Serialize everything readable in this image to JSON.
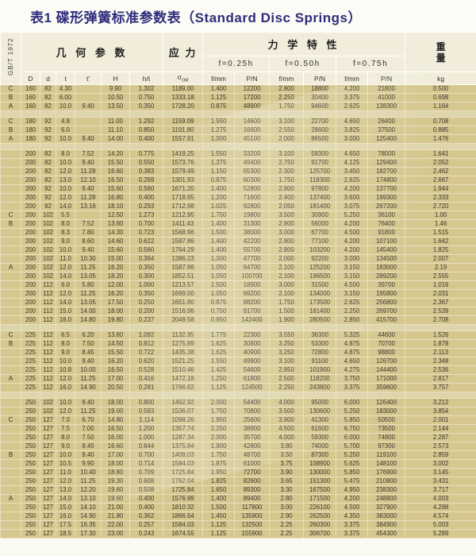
{
  "title": "表1 碟形弹簧标准参数表（Standard Disc Springs）",
  "standard_label": "GB/T 1972",
  "header": {
    "geometry_group": "几 何 参 数",
    "stress_group": "应 力",
    "mechanics_group": "力 学 特 性",
    "weight_top": "重",
    "weight_bottom": "量",
    "stress_symbol": "σ",
    "stress_symbol_sub": "OM",
    "f_levels": [
      "f=0.25h",
      "f=0.50h",
      "f=0.75h"
    ],
    "geo_cols": [
      "D",
      "d",
      "t",
      "t′",
      "H",
      "h/t"
    ],
    "mech_col_f": "f/mm",
    "mech_col_p": "P/N",
    "weight_unit": "kg"
  },
  "colors": {
    "title_text": "#2d2d7b",
    "header_bg": "#f1edda",
    "row_bg": "#d5c78e",
    "separator_bg": "#ded5ac",
    "gridline": "#e9e1c0"
  },
  "rows": [
    {
      "label": "C",
      "c": [
        "160",
        "82",
        "4.30",
        "",
        "9.90",
        "1.302",
        "1189.00",
        "1.400",
        "12200",
        "2.800",
        "18800",
        "4.200",
        "21800",
        "0.500"
      ]
    },
    {
      "label": "B",
      "c": [
        "160",
        "82",
        "6.00",
        "",
        "10.50",
        "0.750",
        "1333.18",
        "1.125",
        "17200",
        "2.250",
        "30400",
        "3.375",
        "41000",
        "0.698"
      ]
    },
    {
      "label": "A",
      "c": [
        "160",
        "82",
        "10.0",
        "9.40",
        "13.50",
        "0.350",
        "1728.20",
        "0.875",
        "48900",
        "1.750",
        "94600",
        "2.625",
        "138300",
        "1.164"
      ]
    },
    {
      "sep": true
    },
    {
      "label": "C",
      "c": [
        "180",
        "92",
        "4.8",
        "",
        "11.00",
        "1.292",
        "1159.09",
        "1.550",
        "14600",
        "3.100",
        "22700",
        "4.650",
        "26400",
        "0.708"
      ]
    },
    {
      "label": "B",
      "c": [
        "180",
        "92",
        "6.0",
        "",
        "11.10",
        "0.850",
        "1191.80",
        "1.275",
        "16600",
        "2.550",
        "28600",
        "3.825",
        "37500",
        "0.885"
      ]
    },
    {
      "label": "A",
      "c": [
        "180",
        "92",
        "10.0",
        "9.40",
        "14.00",
        "0.400",
        "1557.91",
        "1.000",
        "45100",
        "2.000",
        "86500",
        "3.000",
        "125400",
        "1.476"
      ]
    },
    {
      "sep": true
    },
    {
      "label": "",
      "c": [
        "200",
        "82",
        "8.0",
        "7.52",
        "14.20",
        "0.775",
        "1419.25",
        "1.550",
        "33200",
        "3.100",
        "58300",
        "4.650",
        "78000",
        "1.641"
      ]
    },
    {
      "label": "",
      "c": [
        "200",
        "82",
        "10.0",
        "9.40",
        "15.50",
        "0.550",
        "1573.76",
        "1.375",
        "49400",
        "2.750",
        "91700",
        "4.125",
        "129400",
        "2.052"
      ]
    },
    {
      "label": "",
      "c": [
        "200",
        "82",
        "12.0",
        "11.28",
        "16.60",
        "0.383",
        "1579.49",
        "1.150",
        "65300",
        "2.300",
        "125700",
        "3.450",
        "182700",
        "2.462"
      ]
    },
    {
      "label": "",
      "c": [
        "200",
        "82",
        "13.0",
        "12.10",
        "16.50",
        "0.269",
        "1301.93",
        "0.875",
        "60300",
        "1.750",
        "118300",
        "2.625",
        "174800",
        "2.667"
      ]
    },
    {
      "label": "",
      "c": [
        "200",
        "92",
        "10.0",
        "9.40",
        "15.60",
        "0.560",
        "1671.20",
        "1.400",
        "52800",
        "2.800",
        "97800",
        "4.200",
        "137700",
        "1.944"
      ]
    },
    {
      "label": "",
      "c": [
        "200",
        "92",
        "12.0",
        "11.28",
        "16.80",
        "0.400",
        "1718.95",
        "1.200",
        "71600",
        "2.400",
        "137400",
        "3.600",
        "199300",
        "2.333"
      ]
    },
    {
      "label": "",
      "c": [
        "200",
        "92",
        "14.0",
        "13.16",
        "18.10",
        "0.293",
        "1712.98",
        "1.025",
        "92800",
        "2.050",
        "181400",
        "3.075",
        "267200",
        "2.720"
      ]
    },
    {
      "label": "C",
      "c": [
        "200",
        "102",
        "5.5",
        "",
        "12.50",
        "1.273",
        "1212.95",
        "1.750",
        "19800",
        "3.500",
        "30900",
        "5.250",
        "36100",
        "1.00"
      ]
    },
    {
      "label": "B",
      "c": [
        "200",
        "102",
        "8.0",
        "7.52",
        "13.60",
        "0.700",
        "1411.43",
        "1.400",
        "31300",
        "2.800",
        "56000",
        "4.200",
        "76400",
        "1.46"
      ]
    },
    {
      "label": "",
      "c": [
        "200",
        "102",
        "8.3",
        "7.80",
        "14.30",
        "0.723",
        "1568.96",
        "1.500",
        "38000",
        "3.000",
        "67700",
        "4.500",
        "91800",
        "1.515"
      ]
    },
    {
      "label": "",
      "c": [
        "200",
        "102",
        "9.0",
        "8.60",
        "14.60",
        "0.622",
        "1587.86",
        "1.400",
        "42200",
        "2.800",
        "77100",
        "4.200",
        "107100",
        "1.642"
      ]
    },
    {
      "label": "",
      "c": [
        "200",
        "102",
        "10.0",
        "9.40",
        "15.60",
        "0.560",
        "1764.29",
        "1.400",
        "55700",
        "2.800",
        "103200",
        "4.200",
        "145400",
        "1.825"
      ]
    },
    {
      "label": "",
      "c": [
        "200",
        "102",
        "11.0",
        "10.30",
        "15.00",
        "0.364",
        "1386.23",
        "1.000",
        "47700",
        "2.000",
        "92200",
        "3.000",
        "134500",
        "2.007"
      ]
    },
    {
      "label": "A",
      "c": [
        "200",
        "102",
        "12.0",
        "11.25",
        "16.20",
        "0.350",
        "1587.86",
        "1.050",
        "64700",
        "2.100",
        "125200",
        "3.150",
        "183000",
        "2.19"
      ]
    },
    {
      "label": "",
      "c": [
        "200",
        "102",
        "14.0",
        "13.05",
        "18.20",
        "0.300",
        "1852.51",
        "1.050",
        "100700",
        "2.100",
        "196500",
        "3.150",
        "289200",
        "2.555"
      ]
    },
    {
      "label": "",
      "c": [
        "200",
        "112",
        "6.0",
        "5.80",
        "12.00",
        "1.000",
        "1213.57",
        "1.500",
        "18900",
        "3.000",
        "31500",
        "4.500",
        "39700",
        "1.016"
      ]
    },
    {
      "label": "",
      "c": [
        "200",
        "112",
        "12.0",
        "11.25",
        "16.20",
        "0.350",
        "1699.00",
        "1.050",
        "69200",
        "2.100",
        "134000",
        "3.150",
        "195800",
        "2.031"
      ]
    },
    {
      "label": "",
      "c": [
        "200",
        "112",
        "14.0",
        "13.05",
        "17.50",
        "0.250",
        "1651.80",
        "0.875",
        "88200",
        "1.750",
        "173500",
        "2.625",
        "256800",
        "2.367"
      ]
    },
    {
      "label": "",
      "c": [
        "200",
        "112",
        "15.0",
        "14.00",
        "18.00",
        "0.200",
        "1516.96",
        "0.750",
        "91700",
        "1.500",
        "181400",
        "2.250",
        "269700",
        "2.539"
      ]
    },
    {
      "label": "",
      "c": [
        "200",
        "112",
        "16.0",
        "14.80",
        "19.80",
        "0.237",
        "2049.58",
        "0.950",
        "142400",
        "1.900",
        "280500",
        "2.850",
        "415700",
        "2.708"
      ]
    },
    {
      "sep": true
    },
    {
      "label": "C",
      "c": [
        "225",
        "112",
        "6.5",
        "6.20",
        "13.60",
        "1.092",
        "1132.35",
        "1.775",
        "22300",
        "3.550",
        "36300",
        "5.325",
        "44600",
        "1.526"
      ]
    },
    {
      "label": "B",
      "c": [
        "225",
        "112",
        "8.0",
        "7.50",
        "14.50",
        "0.812",
        "1275.89",
        "1.625",
        "30600",
        "3.250",
        "53300",
        "4.875",
        "70700",
        "1.878"
      ]
    },
    {
      "label": "",
      "c": [
        "225",
        "112",
        "9.0",
        "8.45",
        "15.50",
        "0.722",
        "1435.38",
        "1.625",
        "40900",
        "3.250",
        "72800",
        "4.875",
        "98800",
        "2.113"
      ]
    },
    {
      "label": "",
      "c": [
        "225",
        "112",
        "10.0",
        "9.40",
        "16.20",
        "0.620",
        "1521.25",
        "1.550",
        "49900",
        "3.100",
        "91100",
        "4.650",
        "126700",
        "2.348"
      ]
    },
    {
      "label": "",
      "c": [
        "225",
        "112",
        "10.8",
        "10.00",
        "16.50",
        "0.528",
        "1510.46",
        "1.425",
        "54600",
        "2.850",
        "101900",
        "4.275",
        "144400",
        "2.536"
      ]
    },
    {
      "label": "A",
      "c": [
        "225",
        "112",
        "12.0",
        "11.25",
        "17.00",
        "0.416",
        "1472.18",
        "1.250",
        "61800",
        "2.500",
        "118200",
        "3.750",
        "171000",
        "2.817"
      ]
    },
    {
      "label": "",
      "c": [
        "225",
        "112",
        "16.0",
        "14.90",
        "20.50",
        "0.281",
        "1766.62",
        "1.125",
        "124500",
        "2.250",
        "243800",
        "3.375",
        "359600",
        "3.757"
      ]
    },
    {
      "sep": true
    },
    {
      "label": "",
      "c": [
        "250",
        "102",
        "10.0",
        "9.40",
        "18.00",
        "0.800",
        "1462.92",
        "2.000",
        "54400",
        "4.000",
        "95000",
        "6.000",
        "126400",
        "3.212"
      ]
    },
    {
      "label": "",
      "c": [
        "250",
        "102",
        "12.0",
        "11.25",
        "19.00",
        "0.583",
        "1536.07",
        "1.750",
        "70800",
        "3.500",
        "130600",
        "5.250",
        "183000",
        "3.854"
      ]
    },
    {
      "label": "C",
      "c": [
        "250",
        "127",
        "7.0",
        "6.70",
        "14.80",
        "1.114",
        "1098.26",
        "1.950",
        "25600",
        "3.900",
        "41300",
        "5.850",
        "50500",
        "2.001"
      ]
    },
    {
      "label": "",
      "c": [
        "250",
        "127",
        "7.5",
        "7.00",
        "16.50",
        "1.200",
        "1357.74",
        "2.250",
        "38900",
        "4.500",
        "61600",
        "6.750",
        "73500",
        "2.144"
      ]
    },
    {
      "label": "",
      "c": [
        "250",
        "127",
        "8.0",
        "7.50",
        "16.00",
        "1.000",
        "1287.34",
        "2.000",
        "35700",
        "4.000",
        "59300",
        "6.000",
        "74800",
        "2.287"
      ]
    },
    {
      "label": "",
      "c": [
        "250",
        "127",
        "9.0",
        "8.45",
        "16.60",
        "0.844",
        "1375.84",
        "1.900",
        "42800",
        "3.80",
        "74000",
        "5.700",
        "97300",
        "2.573"
      ]
    },
    {
      "label": "B",
      "c": [
        "250",
        "127",
        "10.0",
        "9.40",
        "17.00",
        "0.700",
        "1408.03",
        "1.750",
        "48700",
        "3.50",
        "87300",
        "5.250",
        "119100",
        "2.859"
      ]
    },
    {
      "label": "",
      "c": [
        "250",
        "127",
        "10.5",
        "9.90",
        "18.00",
        "0.714",
        "1584.03",
        "1.875",
        "61000",
        "3.75",
        "108900",
        "5.625",
        "148100",
        "3.002"
      ]
    },
    {
      "label": "",
      "c": [
        "250",
        "127",
        "11.0",
        "10.40",
        "18.80",
        "0.709",
        "1725.84",
        "1.950",
        "72700",
        "3.90",
        "130000",
        "5.850",
        "176900",
        "3.145"
      ]
    },
    {
      "label": "",
      "c": [
        "250",
        "127",
        "12.0",
        "11.25",
        "19.30",
        "0.608",
        "1762.04",
        "1.825",
        "82600",
        "3.65",
        "151300",
        "5.475",
        "210800",
        "3.431"
      ]
    },
    {
      "label": "",
      "c": [
        "250",
        "127",
        "13.0",
        "12.20",
        "19.60",
        "0.508",
        "1725.84",
        "1.650",
        "89300",
        "3.30",
        "167500",
        "4.950",
        "238300",
        "3.717"
      ]
    },
    {
      "label": "A",
      "c": [
        "250",
        "127",
        "14.0",
        "13.10",
        "19.60",
        "0.400",
        "1576.99",
        "1.400",
        "89400",
        "2.80",
        "171500",
        "4.200",
        "248800",
        "4.003"
      ]
    },
    {
      "label": "",
      "c": [
        "250",
        "127",
        "15.0",
        "14.10",
        "21.00",
        "0.400",
        "1810.32",
        "1.500",
        "117800",
        "3.00",
        "226100",
        "4.500",
        "327900",
        "4.288"
      ]
    },
    {
      "label": "",
      "c": [
        "250",
        "127",
        "16.0",
        "14.90",
        "21.80",
        "0.362",
        "1866.64",
        "1.450",
        "135900",
        "2.90",
        "262500",
        "4.350",
        "383000",
        "4.574"
      ]
    },
    {
      "label": "",
      "c": [
        "250",
        "127",
        "17.5",
        "16.35",
        "22.00",
        "0.257",
        "1584.03",
        "1.125",
        "132500",
        "2.25",
        "260300",
        "3.375",
        "384900",
        "5.003"
      ]
    },
    {
      "label": "",
      "c": [
        "250",
        "127",
        "18.5",
        "17.30",
        "23.00",
        "0.243",
        "1674.55",
        "1.125",
        "155900",
        "2.25",
        "306700",
        "3.375",
        "454300",
        "5.289"
      ]
    }
  ]
}
